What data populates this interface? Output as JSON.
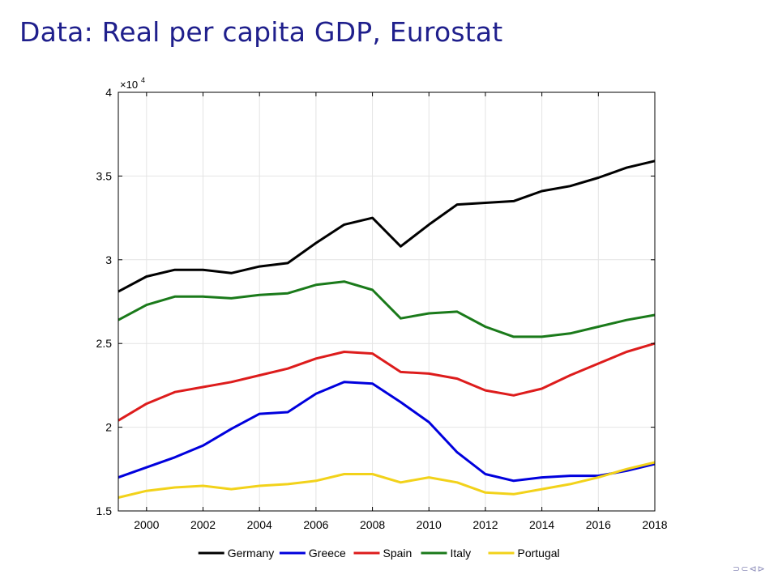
{
  "slide": {
    "title": "Data: Real per capita GDP, Eurostat"
  },
  "navigation": {
    "symbols": "⊃⊂⊲⊳"
  },
  "chart_data": {
    "type": "line",
    "title": "",
    "xlabel": "",
    "ylabel": "",
    "y_exponent_label": "×10",
    "y_exponent": "4",
    "x": [
      1999,
      2000,
      2001,
      2002,
      2003,
      2004,
      2005,
      2006,
      2007,
      2008,
      2009,
      2010,
      2011,
      2012,
      2013,
      2014,
      2015,
      2016,
      2017,
      2018
    ],
    "xlim": [
      1999,
      2018
    ],
    "ylim": [
      1.5,
      4
    ],
    "xticks": [
      2000,
      2002,
      2004,
      2006,
      2008,
      2010,
      2012,
      2014,
      2016,
      2018
    ],
    "yticks": [
      1.5,
      2,
      2.5,
      3,
      3.5,
      4
    ],
    "ytick_labels": [
      "1.5",
      "2",
      "2.5",
      "3",
      "3.5",
      "4"
    ],
    "grid": true,
    "legend_position": "bottom",
    "series": [
      {
        "name": "Germany",
        "color": "#000000",
        "values": [
          2.81,
          2.9,
          2.94,
          2.94,
          2.92,
          2.96,
          2.98,
          3.1,
          3.21,
          3.25,
          3.08,
          3.21,
          3.33,
          3.34,
          3.35,
          3.41,
          3.44,
          3.49,
          3.55,
          3.59
        ]
      },
      {
        "name": "Greece",
        "color": "#0000dd",
        "values": [
          1.7,
          1.76,
          1.82,
          1.89,
          1.99,
          2.08,
          2.09,
          2.2,
          2.27,
          2.26,
          2.15,
          2.03,
          1.85,
          1.72,
          1.68,
          1.7,
          1.71,
          1.71,
          1.74,
          1.78
        ]
      },
      {
        "name": "Spain",
        "color": "#dd1c1c",
        "values": [
          2.04,
          2.14,
          2.21,
          2.24,
          2.27,
          2.31,
          2.35,
          2.41,
          2.45,
          2.44,
          2.33,
          2.32,
          2.29,
          2.22,
          2.19,
          2.23,
          2.31,
          2.38,
          2.45,
          2.5
        ]
      },
      {
        "name": "Italy",
        "color": "#1a7a1a",
        "values": [
          2.64,
          2.73,
          2.78,
          2.78,
          2.77,
          2.79,
          2.8,
          2.85,
          2.87,
          2.82,
          2.65,
          2.68,
          2.69,
          2.6,
          2.54,
          2.54,
          2.56,
          2.6,
          2.64,
          2.67
        ]
      },
      {
        "name": "Portugal",
        "color": "#f2d21a",
        "values": [
          1.58,
          1.62,
          1.64,
          1.65,
          1.63,
          1.65,
          1.66,
          1.68,
          1.72,
          1.72,
          1.67,
          1.7,
          1.67,
          1.61,
          1.6,
          1.63,
          1.66,
          1.7,
          1.75,
          1.79
        ]
      }
    ]
  }
}
